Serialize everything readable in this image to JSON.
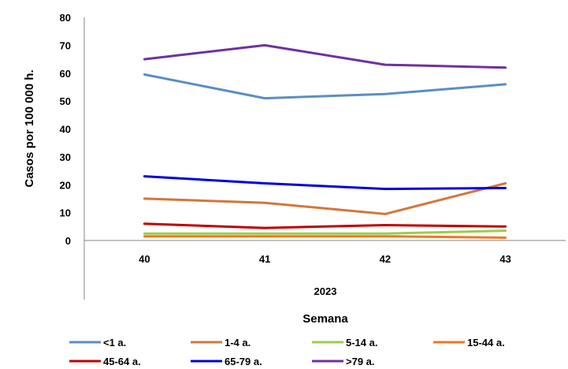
{
  "chart_data": {
    "type": "line",
    "categories": [
      "40",
      "41",
      "42",
      "43"
    ],
    "group_label": "2023",
    "xlabel": "Semana",
    "ylabel": "Casos por 100 000 h.",
    "ylim": [
      0,
      80
    ],
    "yticks": [
      "0",
      "10",
      "20",
      "30",
      "40",
      "50",
      "60",
      "70",
      "80"
    ],
    "grid": false,
    "legend_position": "bottom",
    "series": [
      {
        "name": "<1 a.",
        "color": "#5B8EC2",
        "values": [
          59.5,
          51,
          52.5,
          56
        ]
      },
      {
        "name": "1-4 a.",
        "color": "#D2773A",
        "values": [
          15,
          13.5,
          9.5,
          20.5
        ]
      },
      {
        "name": "5-14 a.",
        "color": "#9ACD4B",
        "values": [
          2.5,
          2.5,
          2.5,
          3.5
        ]
      },
      {
        "name": "15-44 a.",
        "color": "#F07820",
        "values": [
          1.5,
          1.5,
          1.5,
          1
        ]
      },
      {
        "name": "45-64 a.",
        "color": "#C00000",
        "values": [
          6,
          4.5,
          5.5,
          5
        ]
      },
      {
        "name": "65-79 a.",
        "color": "#0000E0",
        "values": [
          23,
          20.5,
          18.5,
          18.8
        ]
      },
      {
        "name": ">79 a.",
        "color": "#7030A0",
        "values": [
          65,
          70,
          63,
          62
        ]
      }
    ]
  }
}
